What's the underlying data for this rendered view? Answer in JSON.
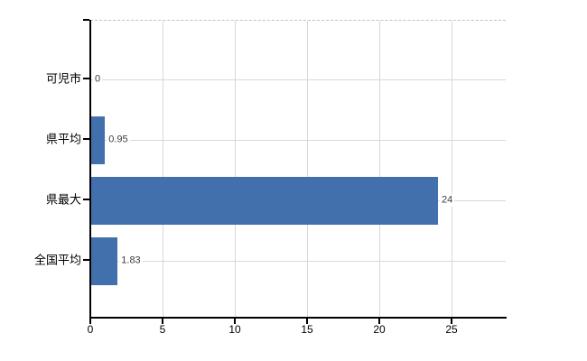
{
  "chart_data": {
    "type": "bar",
    "orientation": "horizontal",
    "title": "",
    "xlabel": "",
    "ylabel": "",
    "categories": [
      "可児市",
      "県平均",
      "県最大",
      "全国平均"
    ],
    "values": [
      0,
      0.95,
      24,
      1.83
    ],
    "value_labels": [
      "0",
      "0.95",
      "24",
      "1.83"
    ],
    "x_ticks": [
      0,
      5,
      10,
      15,
      20,
      25
    ],
    "xlim": [
      0,
      28.75
    ],
    "grid": true,
    "legend": false,
    "colors": {
      "bar": "#4170AC",
      "axis": "#000000",
      "h_gridline": "#D2DCD2",
      "v_gridline": "#DBD7DC",
      "top_border_dashed": "#C6C0C8",
      "value_text": "#3C3C3C",
      "label_text": "#000000",
      "background": "#FFFFFF"
    }
  }
}
